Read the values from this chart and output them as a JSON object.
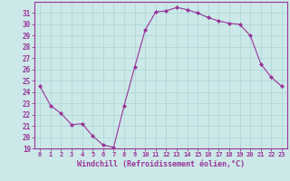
{
  "x": [
    0,
    1,
    2,
    3,
    4,
    5,
    6,
    7,
    8,
    9,
    10,
    11,
    12,
    13,
    14,
    15,
    16,
    17,
    18,
    19,
    20,
    21,
    22,
    23
  ],
  "y": [
    24.5,
    22.8,
    22.1,
    21.1,
    21.2,
    20.1,
    19.3,
    19.1,
    22.8,
    26.2,
    29.5,
    31.1,
    31.2,
    31.5,
    31.3,
    31.0,
    30.6,
    30.3,
    30.1,
    30.0,
    29.0,
    26.5,
    25.3,
    24.5
  ],
  "line_color": "#993399",
  "marker": "D",
  "marker_size": 2,
  "bg_color": "#cce8e8",
  "grid_color": "#b0d8d8",
  "xlabel": "Windchill (Refroidissement éolien,°C)",
  "xlabel_color": "#993399",
  "tick_color": "#993399",
  "spine_color": "#993399",
  "ylim": [
    19,
    32
  ],
  "xlim": [
    -0.5,
    23.5
  ],
  "yticks": [
    19,
    20,
    21,
    22,
    23,
    24,
    25,
    26,
    27,
    28,
    29,
    30,
    31
  ],
  "xticks": [
    0,
    1,
    2,
    3,
    4,
    5,
    6,
    7,
    8,
    9,
    10,
    11,
    12,
    13,
    14,
    15,
    16,
    17,
    18,
    19,
    20,
    21,
    22,
    23
  ],
  "xtick_labels": [
    "0",
    "1",
    "2",
    "3",
    "4",
    "5",
    "6",
    "7",
    "8",
    "9",
    "10",
    "11",
    "12",
    "13",
    "14",
    "15",
    "16",
    "17",
    "18",
    "19",
    "20",
    "21",
    "22",
    "23"
  ]
}
